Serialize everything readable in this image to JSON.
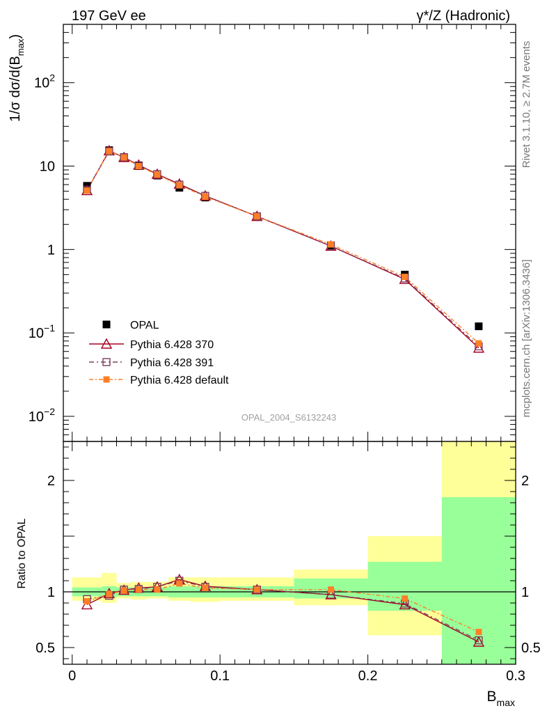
{
  "header": {
    "left": "197 GeV ee",
    "right": "γ*/Z (Hadronic)"
  },
  "side_labels": {
    "rivet": "Rivet 3.1.10, ≥ 2.7M events",
    "mcplots": "mcplots.cern.ch [arXiv:1306.3436]"
  },
  "chart_data": {
    "type": "line",
    "analysis_label": "OPAL_2004_S6132243",
    "xlabel": "B",
    "xlabel_sub": "max",
    "xlim": [
      -0.006,
      0.3
    ],
    "x_ticks": [
      {
        "value": 0,
        "label": "0"
      },
      {
        "value": 0.1,
        "label": "0.1"
      },
      {
        "value": 0.2,
        "label": "0.2"
      },
      {
        "value": 0.3,
        "label": "0.3"
      }
    ],
    "main": {
      "ylabel": "1/σ dσ/d(B",
      "ylabel_sub": "max",
      "ylabel_end": ")",
      "yscale": "log",
      "ylim": [
        0.005,
        500
      ],
      "y_ticks": [
        {
          "value": 0.01,
          "base": "10",
          "exp": "−2"
        },
        {
          "value": 0.1,
          "base": "10",
          "exp": "−1"
        },
        {
          "value": 1,
          "base": "1",
          "exp": ""
        },
        {
          "value": 10,
          "base": "10",
          "exp": ""
        },
        {
          "value": 100,
          "base": "10",
          "exp": "2"
        }
      ]
    },
    "ratio": {
      "ylabel": "Ratio to OPAL",
      "ylim": [
        0.35,
        2.35
      ],
      "y_ticks": [
        {
          "value": 0.5,
          "label": "0.5"
        },
        {
          "value": 1,
          "label": "1"
        },
        {
          "value": 2,
          "label": "2"
        }
      ],
      "bins": [
        0.0,
        0.02,
        0.03,
        0.04,
        0.05,
        0.065,
        0.08,
        0.1,
        0.15,
        0.2,
        0.25,
        0.3
      ],
      "band_inner": [
        [
          0.96,
          1.04
        ],
        [
          0.95,
          1.05
        ],
        [
          0.96,
          1.04
        ],
        [
          0.96,
          1.04
        ],
        [
          0.96,
          1.04
        ],
        [
          0.95,
          1.05
        ],
        [
          0.95,
          1.05
        ],
        [
          0.95,
          1.05
        ],
        [
          0.94,
          1.12
        ],
        [
          0.83,
          1.27
        ],
        [
          0.35,
          1.85
        ]
      ],
      "band_outer": [
        [
          0.92,
          1.13
        ],
        [
          0.9,
          1.17
        ],
        [
          0.94,
          1.08
        ],
        [
          0.93,
          1.09
        ],
        [
          0.94,
          1.09
        ],
        [
          0.92,
          1.13
        ],
        [
          0.91,
          1.13
        ],
        [
          0.92,
          1.13
        ],
        [
          0.88,
          1.2
        ],
        [
          0.61,
          1.5
        ],
        [
          0.35,
          2.35
        ]
      ]
    },
    "x": [
      0.01,
      0.025,
      0.035,
      0.045,
      0.0575,
      0.0725,
      0.09,
      0.125,
      0.175,
      0.225,
      0.275
    ],
    "series": [
      {
        "name": "OPAL",
        "style": "data",
        "color": "#000000",
        "values": [
          5.8,
          15.5,
          12.5,
          10.0,
          7.7,
          5.5,
          4.2,
          2.45,
          1.12,
          0.5,
          0.12
        ],
        "ratio": [
          1,
          1,
          1,
          1,
          1,
          1,
          1,
          1,
          1,
          1,
          1
        ]
      },
      {
        "name": "Pythia 6.428 370",
        "style": "triangle",
        "color": "#a50021",
        "values": [
          5.1,
          15.3,
          12.7,
          10.3,
          8.0,
          6.1,
          4.4,
          2.5,
          1.1,
          0.44,
          0.066
        ],
        "ratio": [
          0.885,
          0.985,
          1.015,
          1.035,
          1.045,
          1.11,
          1.05,
          1.02,
          0.975,
          0.885,
          0.55
        ]
      },
      {
        "name": "Pythia 6.428 391",
        "style": "square-open",
        "color": "#7b3f5e",
        "values": [
          5.2,
          15.0,
          12.8,
          10.2,
          8.0,
          6.0,
          4.4,
          2.5,
          1.1,
          0.45,
          0.069
        ],
        "ratio": [
          0.935,
          0.965,
          1.02,
          1.025,
          1.045,
          1.1,
          1.045,
          1.02,
          0.975,
          0.895,
          0.565
        ]
      },
      {
        "name": "Pythia 6.428 default",
        "style": "square-filled",
        "color": "#ff7f27",
        "values": [
          5.1,
          15.1,
          12.7,
          10.0,
          7.9,
          5.9,
          4.3,
          2.5,
          1.15,
          0.47,
          0.075
        ],
        "ratio": [
          0.915,
          0.98,
          1.01,
          1.02,
          1.02,
          1.075,
          1.035,
          1.02,
          1.02,
          0.94,
          0.64
        ]
      }
    ],
    "legend_position": "lower-left"
  }
}
